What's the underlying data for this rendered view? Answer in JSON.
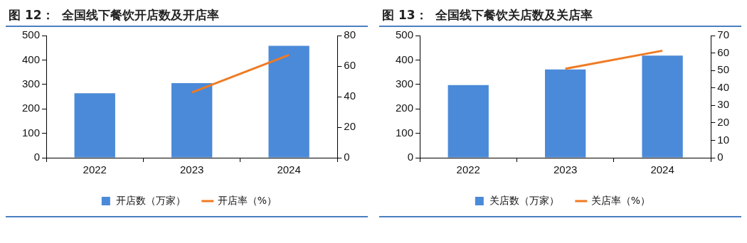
{
  "chart_data": [
    {
      "type": "bar",
      "title": "图 12：  全国线下餐饮开店数及开店率",
      "categories": [
        "2022",
        "2023",
        "2024"
      ],
      "series": [
        {
          "name": "开店数（万家）",
          "color": "#4a8ad8",
          "values": [
            264,
            305,
            458
          ]
        },
        {
          "name": "开店率（%）",
          "type": "line",
          "axis": "y2",
          "color": "#f07a22",
          "values": [
            null,
            42.7,
            67.3
          ]
        }
      ],
      "ylim": [
        0,
        500
      ],
      "yticks": [
        0,
        100,
        200,
        300,
        400,
        500
      ],
      "y2lim": [
        0,
        80
      ],
      "y2ticks": [
        0,
        20,
        40,
        60,
        80
      ],
      "legend": "bottom"
    },
    {
      "type": "bar",
      "title": "图 13：  全国线下餐饮关店数及关店率",
      "categories": [
        "2022",
        "2023",
        "2024"
      ],
      "series": [
        {
          "name": "关店数（万家）",
          "color": "#4a8ad8",
          "values": [
            297,
            361,
            418
          ]
        },
        {
          "name": "关店率（%）",
          "type": "line",
          "axis": "y2",
          "color": "#f07a22",
          "values": [
            null,
            51.0,
            61.3
          ]
        }
      ],
      "ylim": [
        0,
        500
      ],
      "yticks": [
        0,
        100,
        200,
        300,
        400,
        500
      ],
      "y2lim": [
        0,
        70
      ],
      "y2ticks": [
        0,
        10,
        20,
        30,
        40,
        50,
        60,
        70
      ],
      "legend": "bottom"
    }
  ]
}
